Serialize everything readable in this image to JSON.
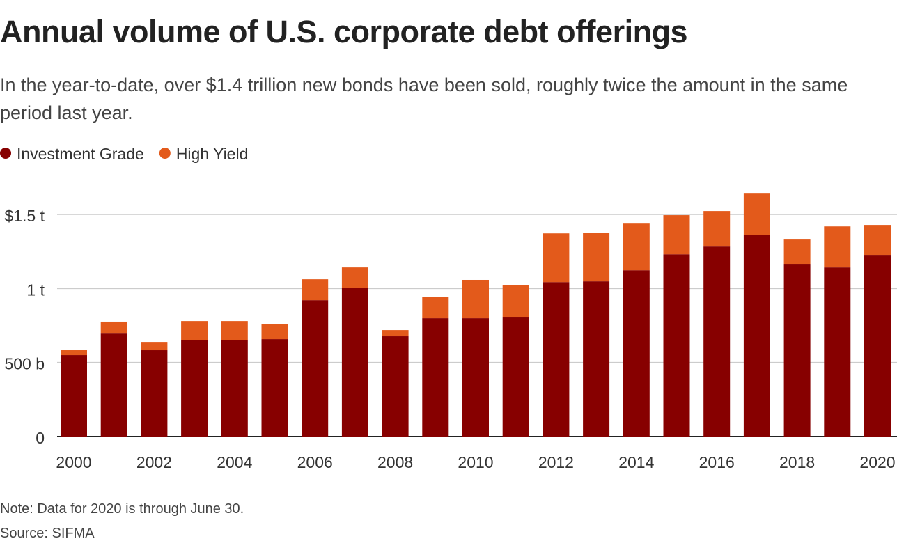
{
  "chart_data": {
    "type": "stacked_bar",
    "title": "Annual volume of U.S. corporate debt offerings",
    "subtitle": "In the year-to-date, over $1.4 trillion new bonds have been sold, roughly twice the amount in the same period last year.",
    "note": "Note: Data for 2020 is through June 30.",
    "source": "Source: SIFMA",
    "categories": [
      "2000",
      null,
      "2002",
      null,
      "2004",
      null,
      "2006",
      null,
      "2008",
      null,
      "2010",
      null,
      "2012",
      null,
      "2014",
      null,
      "2016",
      null,
      "2018",
      null,
      "2020"
    ],
    "series": [
      {
        "name": "Investment Grade",
        "color": "#870000",
        "values": [
          550,
          700,
          583,
          653,
          649,
          658,
          921,
          1006,
          677,
          799,
          799,
          804,
          1043,
          1048,
          1123,
          1231,
          1283,
          1363,
          1166,
          1142,
          1227
        ]
      },
      {
        "name": "High Yield",
        "color": "#e35a1b",
        "values": [
          33,
          76,
          56,
          127,
          131,
          99,
          141,
          136,
          42,
          146,
          259,
          221,
          329,
          329,
          315,
          264,
          240,
          282,
          169,
          277,
          202
        ]
      }
    ],
    "ylim": [
      0,
      1700
    ],
    "yticks": [
      0,
      {
        "value": 500,
        "label": "500 b"
      },
      {
        "value": 1000,
        "label": "1 t"
      },
      {
        "value": 1500,
        "label": "$1.5 t"
      }
    ],
    "grid": true,
    "legend": "top-left"
  }
}
